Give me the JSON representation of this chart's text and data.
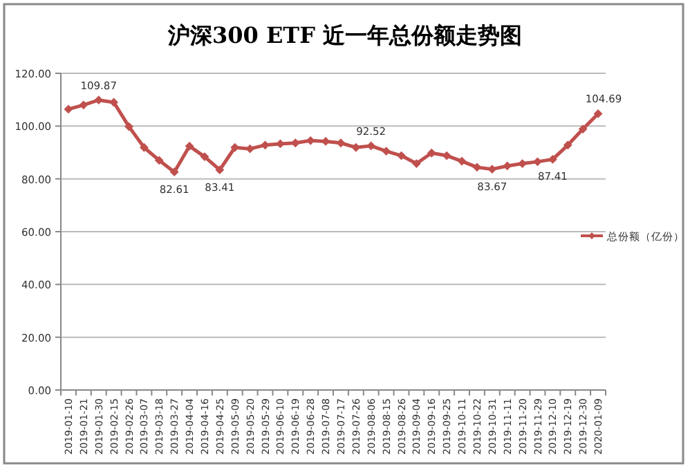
{
  "chart_data": {
    "type": "line",
    "title": "沪深300 ETF 近一年总份额走势图",
    "categories": [
      "2019-01-10",
      "2019-01-21",
      "2019-01-30",
      "2019-02-15",
      "2019-02-26",
      "2019-03-07",
      "2019-03-18",
      "2019-03-27",
      "2019-04-04",
      "2019-04-16",
      "2019-04-25",
      "2019-05-09",
      "2019-05-20",
      "2019-05-29",
      "2019-06-10",
      "2019-06-19",
      "2019-06-28",
      "2019-07-08",
      "2019-07-17",
      "2019-07-26",
      "2019-08-06",
      "2019-08-15",
      "2019-08-26",
      "2019-09-04",
      "2019-09-16",
      "2019-09-25",
      "2019-10-11",
      "2019-10-22",
      "2019-10-31",
      "2019-11-11",
      "2019-11-20",
      "2019-11-29",
      "2019-12-10",
      "2019-12-19",
      "2019-12-30",
      "2020-01-09"
    ],
    "series": [
      {
        "name": "总份额（亿份）",
        "color": "#c0504d",
        "values": [
          106.4,
          108,
          109.87,
          109,
          99.8,
          91.9,
          87,
          82.61,
          92.4,
          88.4,
          83.41,
          91.9,
          91.4,
          92.8,
          93.3,
          93.6,
          94.5,
          94.2,
          93.6,
          91.9,
          92.52,
          90.5,
          88.8,
          85.8,
          89.8,
          88.8,
          86.7,
          84.4,
          83.67,
          84.9,
          85.8,
          86.5,
          87.41,
          92.8,
          98.9,
          104.69
        ]
      }
    ],
    "annotations": [
      {
        "text": "109.87",
        "x": "2019-01-30",
        "y": 109.87
      },
      {
        "text": "82.61",
        "x": "2019-03-27",
        "y": 82.61
      },
      {
        "text": "83.41",
        "x": "2019-04-25",
        "y": 83.41
      },
      {
        "text": "92.52",
        "x": "2019-08-06",
        "y": 92.52
      },
      {
        "text": "83.67",
        "x": "2019-10-31",
        "y": 83.67
      },
      {
        "text": "87.41",
        "x": "2019-12-10",
        "y": 87.41
      },
      {
        "text": "104.69",
        "x": "2020-01-09",
        "y": 104.69
      }
    ],
    "ylim": [
      0,
      120
    ],
    "yticks": [
      {
        "value": 0,
        "label": "0.00"
      },
      {
        "value": 20,
        "label": "20.00"
      },
      {
        "value": 40,
        "label": "40.00"
      },
      {
        "value": 60,
        "label": "60.00"
      },
      {
        "value": 80,
        "label": "80.00"
      },
      {
        "value": 100,
        "label": "100.00"
      },
      {
        "value": 120,
        "label": "120.00"
      }
    ],
    "grid": "y",
    "legend": "right",
    "marker": "diamond",
    "line_style": "solid"
  }
}
